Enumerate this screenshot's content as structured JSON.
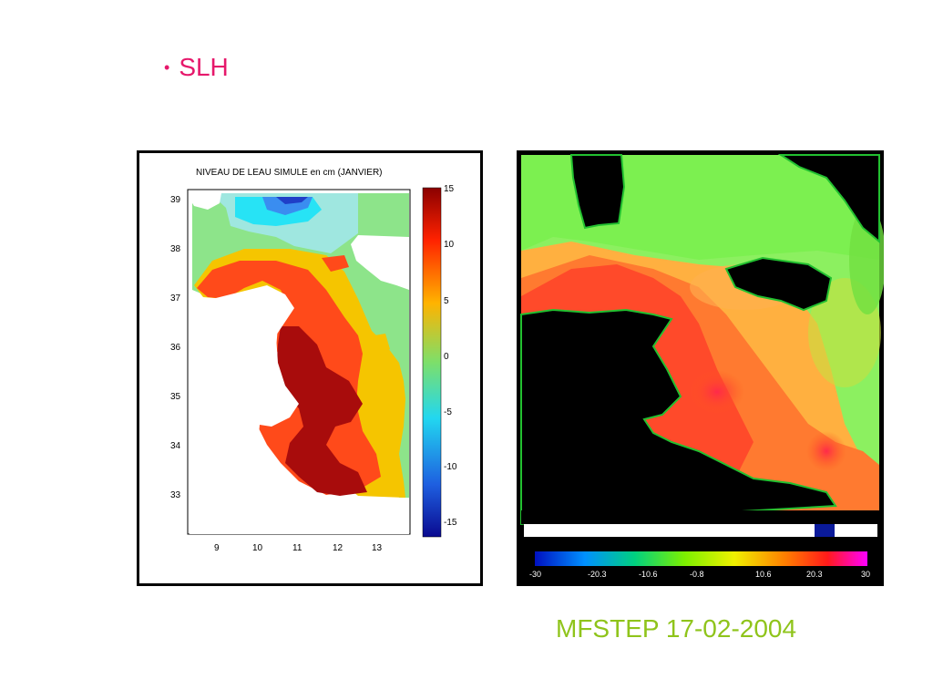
{
  "slide": {
    "bullet_text": "SLH",
    "footer": "MFSTEP 17-02-2004"
  },
  "left_map": {
    "title": "NIVEAU DE LEAU SIMULE en cm (JANVIER)",
    "y_ticks": [
      "39",
      "38",
      "37",
      "36",
      "35",
      "34",
      "33"
    ],
    "x_ticks": [
      "9",
      "10",
      "11",
      "12",
      "13"
    ],
    "colorbar_ticks": [
      "15",
      "10",
      "5",
      "0",
      "-5",
      "-10",
      "-15"
    ]
  },
  "right_map": {
    "colorbar_ticks": [
      "-30",
      "-20.3",
      "-10.6",
      "-0.8",
      "10.6",
      "20.3",
      "30"
    ]
  }
}
